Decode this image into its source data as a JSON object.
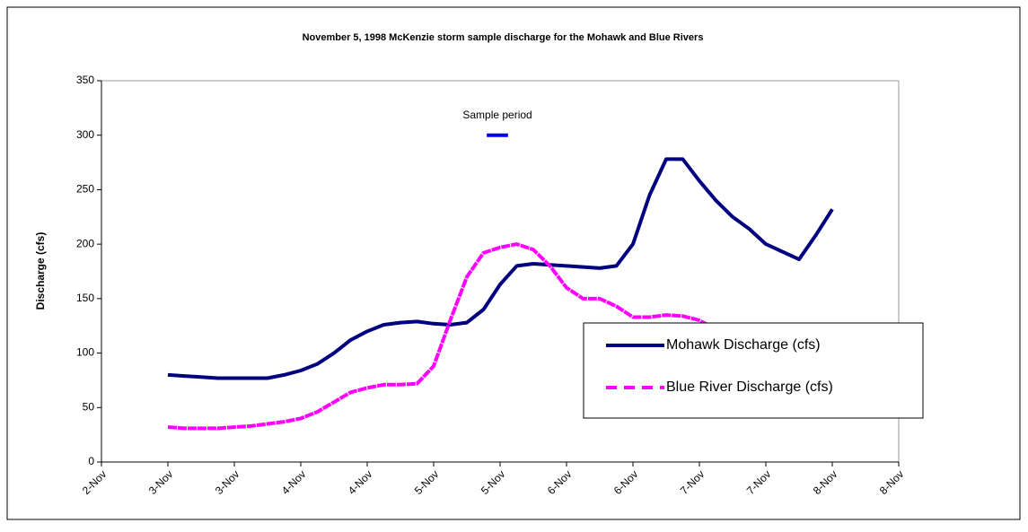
{
  "chart_data": {
    "type": "line",
    "title": "November 5, 1998 McKenzie storm sample discharge for the Mohawk and Blue Rivers",
    "y_label": "Discharge (cfs)",
    "xlim": [
      2.5,
      8.5
    ],
    "xticks": [
      {
        "value": 2.5,
        "label": "2-Nov"
      },
      {
        "value": 3,
        "label": "3-Nov"
      },
      {
        "value": 3.5,
        "label": "3-Nov"
      },
      {
        "value": 4,
        "label": "4-Nov"
      },
      {
        "value": 4.5,
        "label": "4-Nov"
      },
      {
        "value": 5,
        "label": "5-Nov"
      },
      {
        "value": 5.5,
        "label": "5-Nov"
      },
      {
        "value": 6,
        "label": "6-Nov"
      },
      {
        "value": 6.5,
        "label": "6-Nov"
      },
      {
        "value": 7,
        "label": "7-Nov"
      },
      {
        "value": 7.5,
        "label": "7-Nov"
      },
      {
        "value": 8,
        "label": "8-Nov"
      },
      {
        "value": 8.5,
        "label": "8-Nov"
      }
    ],
    "ylim": [
      0,
      350
    ],
    "yticks": [
      0,
      50,
      100,
      150,
      200,
      250,
      300,
      350
    ],
    "grid": false,
    "legend": "lower-right",
    "series": [
      {
        "name": "Mohawk Discharge (cfs)",
        "color": "#000080",
        "style": "solid",
        "x": [
          3,
          3.125,
          3.25,
          3.375,
          3.5,
          3.625,
          3.75,
          3.875,
          4,
          4.125,
          4.25,
          4.375,
          4.5,
          4.625,
          4.75,
          4.875,
          5,
          5.125,
          5.25,
          5.375,
          5.5,
          5.625,
          5.75,
          5.875,
          6,
          6.125,
          6.25,
          6.375,
          6.5,
          6.625,
          6.75,
          6.875,
          7,
          7.125,
          7.25,
          7.375,
          7.5,
          7.625,
          7.75,
          7.875,
          8
        ],
        "values": [
          80,
          79,
          78,
          77,
          77,
          77,
          77,
          80,
          84,
          90,
          100,
          112,
          120,
          126,
          128,
          129,
          127,
          126,
          128,
          140,
          163,
          180,
          182,
          181,
          180,
          179,
          178,
          180,
          200,
          245,
          278,
          278,
          258,
          240,
          225,
          214,
          200,
          193,
          186,
          208,
          232
        ]
      },
      {
        "name": "Blue River Discharge (cfs)",
        "color": "#ff00ff",
        "style": "dashed",
        "x": [
          3,
          3.125,
          3.25,
          3.375,
          3.5,
          3.625,
          3.75,
          3.875,
          4,
          4.125,
          4.25,
          4.375,
          4.5,
          4.625,
          4.75,
          4.875,
          5,
          5.125,
          5.25,
          5.375,
          5.5,
          5.625,
          5.75,
          5.875,
          6,
          6.125,
          6.25,
          6.375,
          6.5,
          6.625,
          6.75,
          6.875,
          7,
          7.125
        ],
        "values": [
          32,
          31,
          31,
          31,
          32,
          33,
          35,
          37,
          40,
          46,
          55,
          64,
          68,
          71,
          71,
          72,
          88,
          130,
          170,
          192,
          197,
          200,
          195,
          180,
          160,
          150,
          150,
          143,
          133,
          133,
          135,
          134,
          130,
          122
        ]
      }
    ],
    "annotation": {
      "text": "Sample period",
      "x": [
        5.4,
        5.56
      ],
      "y": 300,
      "color": "#0000ff"
    }
  }
}
